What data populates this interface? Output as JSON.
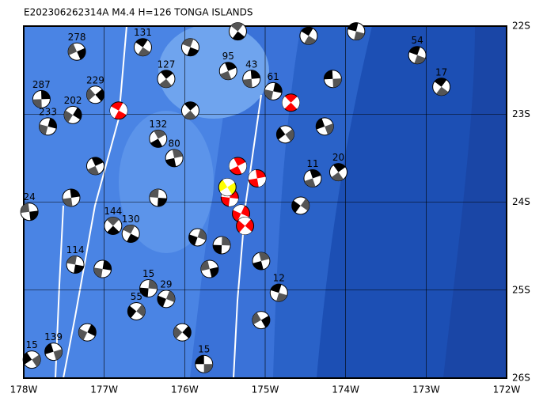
{
  "title": "E202306262314A M4.4 H=126 TONGA ISLANDS",
  "map": {
    "xlim": [
      -178,
      -172
    ],
    "ylim": [
      -22,
      -26
    ],
    "xticks": [
      {
        "value": -178,
        "label": "178W"
      },
      {
        "value": -177,
        "label": "177W"
      },
      {
        "value": -176,
        "label": "176W"
      },
      {
        "value": -175,
        "label": "175W"
      },
      {
        "value": -174,
        "label": "174W"
      },
      {
        "value": -173,
        "label": "173W"
      },
      {
        "value": -172,
        "label": "172W"
      }
    ],
    "yticks": [
      {
        "value": -22,
        "label": "22S"
      },
      {
        "value": -23,
        "label": "23S"
      },
      {
        "value": -24,
        "label": "24S"
      },
      {
        "value": -25,
        "label": "25S"
      },
      {
        "value": -26,
        "label": "26S"
      }
    ],
    "grid": true,
    "events": [
      {
        "lon": -173.11,
        "lat": -22.33,
        "depth": "54",
        "color": "#ffffff"
      },
      {
        "lon": -172.81,
        "lat": -22.69,
        "depth": "17",
        "color": "#ffffff"
      },
      {
        "lon": -174.09,
        "lat": -23.66,
        "depth": "20",
        "color": "#ffffff"
      },
      {
        "lon": -174.41,
        "lat": -23.73,
        "depth": "11",
        "color": "#ffffff"
      },
      {
        "lon": -177.78,
        "lat": -22.83,
        "depth": "287",
        "color": "#ffffff"
      },
      {
        "lon": -177.7,
        "lat": -23.14,
        "depth": "233",
        "color": "#ffffff"
      },
      {
        "lon": -177.39,
        "lat": -23.01,
        "depth": "202",
        "color": "#ffffff"
      },
      {
        "lon": -177.11,
        "lat": -22.78,
        "depth": "229",
        "color": "#ffffff"
      },
      {
        "lon": -177.34,
        "lat": -22.29,
        "depth": "278",
        "color": "#ffffff"
      },
      {
        "lon": -177.93,
        "lat": -24.11,
        "depth": "24",
        "color": "#ffffff"
      },
      {
        "lon": -177.36,
        "lat": -24.71,
        "depth": "114",
        "color": "#ffffff"
      },
      {
        "lon": -176.67,
        "lat": -24.36,
        "depth": "130",
        "color": "#ffffff"
      },
      {
        "lon": -176.89,
        "lat": -24.27,
        "depth": "144",
        "color": "#ffffff"
      },
      {
        "lon": -176.33,
        "lat": -23.28,
        "depth": "132",
        "color": "#ffffff"
      },
      {
        "lon": -176.13,
        "lat": -23.5,
        "depth": "80",
        "color": "#ffffff"
      },
      {
        "lon": -176.45,
        "lat": -24.98,
        "depth": "15",
        "color": "#ffffff"
      },
      {
        "lon": -176.23,
        "lat": -25.1,
        "depth": "29",
        "color": "#ffffff"
      },
      {
        "lon": -176.6,
        "lat": -25.24,
        "depth": "55",
        "color": "#ffffff"
      },
      {
        "lon": -177.9,
        "lat": -25.79,
        "depth": "15",
        "color": "#ffffff"
      },
      {
        "lon": -177.63,
        "lat": -25.7,
        "depth": "139",
        "color": "#ffffff"
      },
      {
        "lon": -175.76,
        "lat": -25.84,
        "depth": "15",
        "color": "#ffffff"
      },
      {
        "lon": -174.83,
        "lat": -25.03,
        "depth": "12",
        "color": "#ffffff"
      },
      {
        "lon": -176.52,
        "lat": -22.24,
        "depth": "131",
        "color": "#ffffff"
      },
      {
        "lon": -176.23,
        "lat": -22.6,
        "depth": "127",
        "color": "#ffffff"
      },
      {
        "lon": -175.46,
        "lat": -22.51,
        "depth": "95",
        "color": "#ffffff"
      },
      {
        "lon": -175.17,
        "lat": -22.6,
        "depth": "43",
        "color": "#ffffff"
      },
      {
        "lon": -174.9,
        "lat": -22.74,
        "depth": "61",
        "color": "#ffffff"
      },
      {
        "lon": -176.82,
        "lat": -22.96,
        "depth": null,
        "color": "#ff0000"
      },
      {
        "lon": -174.68,
        "lat": -22.87,
        "depth": null,
        "color": "#ff0000"
      },
      {
        "lon": -175.34,
        "lat": -23.59,
        "depth": null,
        "color": "#ff0000"
      },
      {
        "lon": -175.1,
        "lat": -23.73,
        "depth": null,
        "color": "#ff0000"
      },
      {
        "lon": -175.44,
        "lat": -23.95,
        "depth": null,
        "color": "#ff0000"
      },
      {
        "lon": -175.3,
        "lat": -24.13,
        "depth": null,
        "color": "#ff0000"
      },
      {
        "lon": -175.25,
        "lat": -24.27,
        "depth": null,
        "color": "#ff0000"
      },
      {
        "lon": -175.47,
        "lat": -23.83,
        "depth": null,
        "color": "#ffff00"
      },
      {
        "lon": -175.05,
        "lat": -24.67,
        "depth": null,
        "color": "#ffffff"
      },
      {
        "lon": -175.54,
        "lat": -24.49,
        "depth": null,
        "color": "#ffffff"
      },
      {
        "lon": -175.84,
        "lat": -24.4,
        "depth": null,
        "color": "#ffffff"
      },
      {
        "lon": -174.56,
        "lat": -24.04,
        "depth": null,
        "color": "#ffffff"
      },
      {
        "lon": -174.75,
        "lat": -23.23,
        "depth": null,
        "color": "#ffffff"
      },
      {
        "lon": -174.26,
        "lat": -23.14,
        "depth": null,
        "color": "#ffffff"
      },
      {
        "lon": -174.16,
        "lat": -22.6,
        "depth": null,
        "color": "#ffffff"
      },
      {
        "lon": -173.87,
        "lat": -22.06,
        "depth": null,
        "color": "#ffffff"
      },
      {
        "lon": -174.46,
        "lat": -22.11,
        "depth": null,
        "color": "#ffffff"
      },
      {
        "lon": -175.93,
        "lat": -22.96,
        "depth": null,
        "color": "#ffffff"
      },
      {
        "lon": -177.11,
        "lat": -23.59,
        "depth": null,
        "color": "#ffffff"
      },
      {
        "lon": -177.41,
        "lat": -23.95,
        "depth": null,
        "color": "#ffffff"
      },
      {
        "lon": -177.02,
        "lat": -24.76,
        "depth": null,
        "color": "#ffffff"
      },
      {
        "lon": -177.21,
        "lat": -25.48,
        "depth": null,
        "color": "#ffffff"
      },
      {
        "lon": -176.03,
        "lat": -25.48,
        "depth": null,
        "color": "#ffffff"
      },
      {
        "lon": -175.05,
        "lat": -25.34,
        "depth": null,
        "color": "#ffffff"
      },
      {
        "lon": -175.69,
        "lat": -24.76,
        "depth": null,
        "color": "#ffffff"
      },
      {
        "lon": -176.33,
        "lat": -23.95,
        "depth": null,
        "color": "#ffffff"
      },
      {
        "lon": -175.93,
        "lat": -22.24,
        "depth": null,
        "color": "#ffffff"
      },
      {
        "lon": -175.34,
        "lat": -22.06,
        "depth": null,
        "color": "#ffffff"
      }
    ]
  }
}
